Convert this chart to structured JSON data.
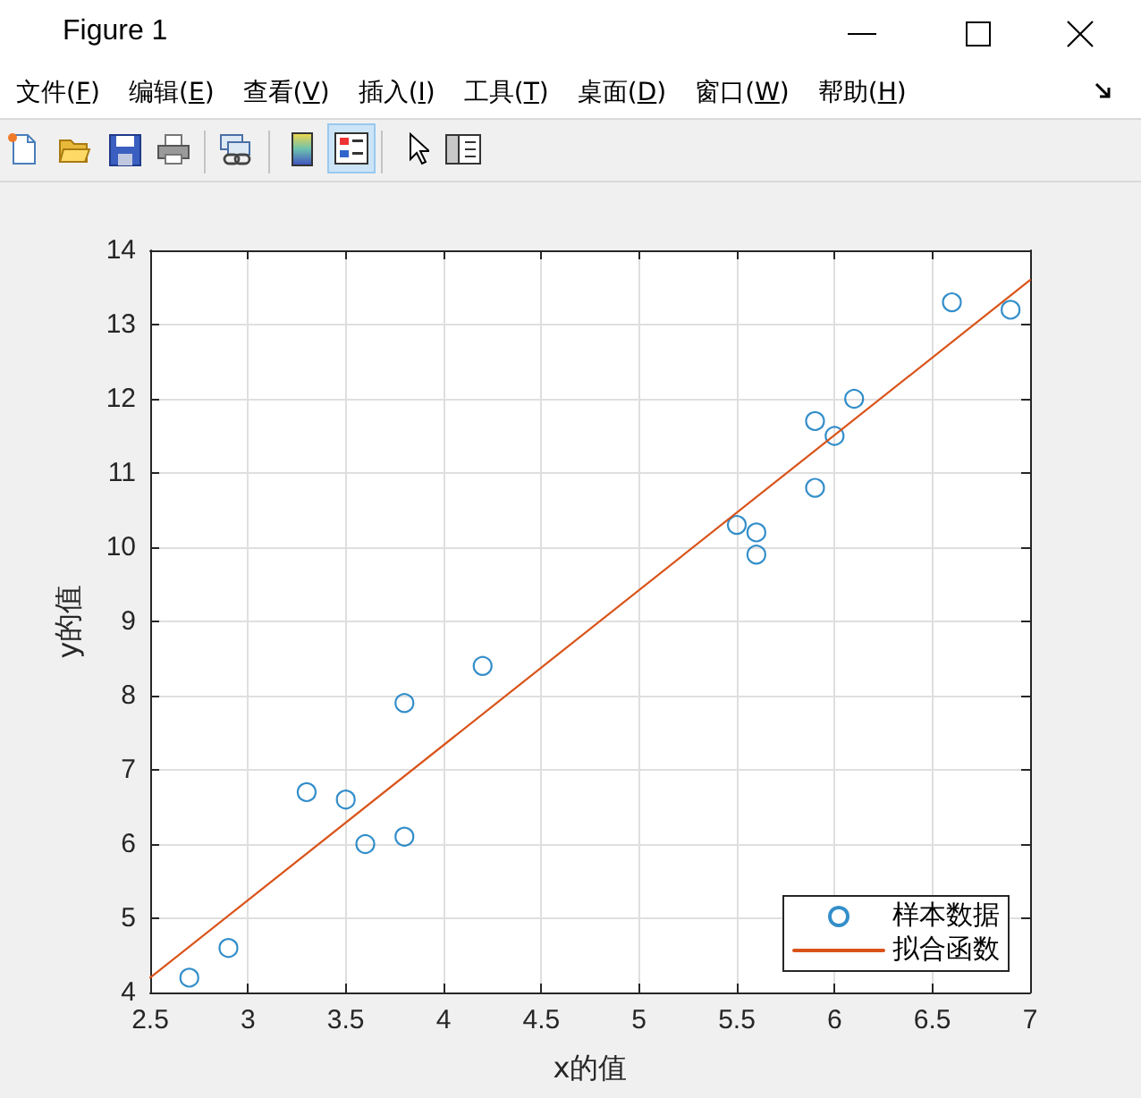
{
  "chart_data": {
    "type": "scatter",
    "xlabel": "x的值",
    "ylabel": "y的值",
    "xlim": [
      2.5,
      7
    ],
    "xticks": [
      2.5,
      3,
      3.5,
      4,
      4.5,
      5,
      5.5,
      6,
      6.5,
      7
    ],
    "ylim": [
      4,
      14
    ],
    "yticks": [
      4,
      5,
      6,
      7,
      8,
      9,
      10,
      11,
      12,
      13,
      14
    ],
    "grid": true,
    "legend": "bottom right",
    "annotations": [
      "Figure 1",
      "文件(F)",
      "编辑(E)",
      "查看(V)",
      "插入(I)",
      "工具(T)",
      "桌面(D)",
      "窗口(W)",
      "帮助(H)"
    ],
    "series": [
      {
        "name": "样本数据",
        "color": "#0072bd",
        "marker": "circle",
        "x": [
          2.7,
          2.9,
          3.3,
          3.5,
          3.6,
          3.8,
          3.8,
          4.2,
          5.5,
          5.6,
          5.6,
          5.9,
          5.9,
          6.0,
          6.1,
          6.6,
          6.9
        ],
        "values": [
          4.2,
          4.6,
          6.7,
          6.6,
          6.0,
          7.9,
          6.1,
          8.4,
          10.3,
          10.2,
          9.9,
          11.7,
          10.8,
          11.5,
          12.0,
          13.3,
          13.2
        ]
      },
      {
        "name": "拟合函数",
        "type": "line",
        "color": "#d95319",
        "marker": "none",
        "line_style": "solid",
        "x": [
          2.5,
          7
        ],
        "values": [
          4.2,
          13.6
        ]
      }
    ]
  }
}
